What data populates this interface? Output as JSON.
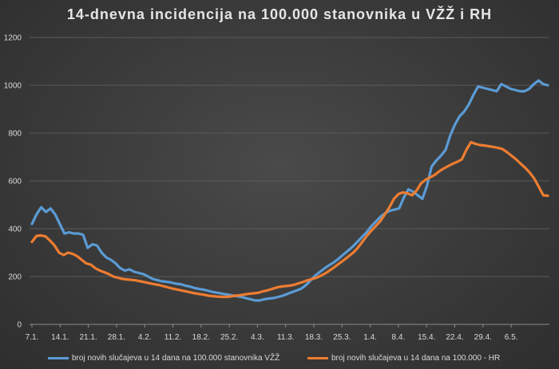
{
  "chart_data": {
    "type": "line",
    "title": "14-dnevna incidencija na 100.000 stanovnika u VŽŽ i RH",
    "ylim": [
      0,
      1200
    ],
    "yticks": [
      "0",
      "200",
      "400",
      "600",
      "800",
      "1000",
      "1200"
    ],
    "xticks": [
      "7.1.",
      "14.1.",
      "21.1.",
      "28.1.",
      "4.2.",
      "11.2.",
      "18.2.",
      "25.2.",
      "4.3.",
      "11.3.",
      "18.3.",
      "25.3.",
      "1.4.",
      "8.4.",
      "15.4.",
      "22.4.",
      "29.4.",
      "6.5."
    ],
    "grid": true,
    "legend_position": "bottom",
    "series": [
      {
        "name": "broj novih slučajeva u 14 dana na 100.000 stanovnika VŽŽ",
        "color": "#5b9bd5",
        "values": [
          420,
          460,
          490,
          470,
          485,
          460,
          420,
          380,
          385,
          380,
          380,
          375,
          320,
          335,
          330,
          300,
          280,
          270,
          255,
          235,
          225,
          230,
          220,
          215,
          210,
          200,
          190,
          185,
          180,
          178,
          175,
          170,
          168,
          162,
          158,
          152,
          148,
          145,
          140,
          135,
          132,
          128,
          125,
          122,
          118,
          115,
          110,
          105,
          100,
          100,
          105,
          108,
          110,
          115,
          120,
          128,
          135,
          142,
          150,
          165,
          185,
          205,
          220,
          235,
          248,
          260,
          275,
          292,
          308,
          325,
          345,
          365,
          385,
          410,
          430,
          450,
          465,
          475,
          480,
          485,
          530,
          565,
          555,
          540,
          525,
          580,
          660,
          685,
          705,
          730,
          790,
          835,
          870,
          890,
          920,
          960,
          995,
          990,
          985,
          980,
          975,
          1005,
          995,
          985,
          980,
          975,
          975,
          985,
          1005,
          1020,
          1005,
          1000
        ]
      },
      {
        "name": "broj novih slučajeva u 14 dana na 100.000 - HR",
        "color": "#ed7d31",
        "values": [
          345,
          370,
          372,
          368,
          350,
          330,
          300,
          290,
          300,
          295,
          285,
          270,
          255,
          250,
          235,
          225,
          218,
          210,
          200,
          195,
          190,
          188,
          186,
          184,
          180,
          176,
          172,
          168,
          165,
          160,
          155,
          150,
          146,
          142,
          138,
          134,
          130,
          127,
          124,
          120,
          118,
          116,
          115,
          115,
          117,
          120,
          122,
          125,
          128,
          130,
          132,
          138,
          142,
          148,
          154,
          158,
          160,
          162,
          166,
          172,
          178,
          185,
          190,
          196,
          205,
          215,
          228,
          242,
          256,
          270,
          285,
          300,
          320,
          345,
          370,
          392,
          412,
          432,
          460,
          490,
          525,
          545,
          552,
          548,
          540,
          560,
          590,
          605,
          615,
          625,
          640,
          652,
          662,
          672,
          680,
          690,
          730,
          762,
          755,
          750,
          748,
          745,
          742,
          738,
          733,
          720,
          705,
          690,
          672,
          655,
          635,
          610,
          575,
          540,
          538
        ]
      }
    ]
  }
}
